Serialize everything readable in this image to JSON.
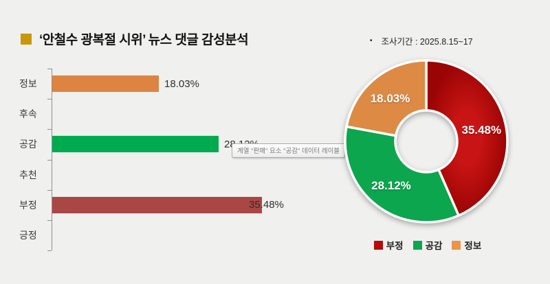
{
  "title": {
    "text": "‘안철수 광복절 시위’ 뉴스 댓글 감성분석"
  },
  "survey_period": {
    "bullet": "•",
    "text": "조사기간 : 2025.8.15~17"
  },
  "tooltip": {
    "text": "계열 \"판매\" 요소 \"공감\" 데이터 레이블"
  },
  "chart_data": [
    {
      "type": "bar",
      "orientation": "horizontal",
      "categories": [
        "정보",
        "후속",
        "공감",
        "추천",
        "부정",
        "긍정"
      ],
      "keys": [
        "info",
        "followup",
        "empathy",
        "recommend",
        "negative",
        "positive"
      ],
      "values": [
        18.03,
        0,
        28.12,
        0,
        35.48,
        0
      ],
      "value_labels": [
        "18.03%",
        "",
        "28.12%",
        "",
        "35.48%",
        ""
      ],
      "bar_colors": [
        "#DD8442",
        "",
        "#00AB50",
        "",
        "#A94745",
        ""
      ],
      "xlim": [
        0,
        40
      ],
      "grid": false,
      "axis_color": "#8F8F8F"
    },
    {
      "type": "pie",
      "donut": true,
      "labels": [
        "부정",
        "공감",
        "정보"
      ],
      "keys": [
        "negative",
        "empathy",
        "info"
      ],
      "values": [
        35.48,
        28.12,
        18.03
      ],
      "value_labels": [
        "35.48%",
        "28.12%",
        "18.03%"
      ],
      "colors": [
        "#B40808",
        "#0CA64E",
        "#DD8A45"
      ],
      "red_gradient": [
        "#C81414",
        "#9A0404"
      ],
      "start_angle_deg": 0,
      "direction": "clockwise",
      "legend_position": "bottom"
    }
  ],
  "legend": {
    "items": [
      {
        "key": "negative",
        "label": "부정",
        "color": "#B60B0B"
      },
      {
        "key": "empathy",
        "label": "공감",
        "color": "#0CA64F"
      },
      {
        "key": "info",
        "label": "정보",
        "color": "#EC9447"
      }
    ]
  },
  "colors": {
    "background": "#F0F0EF",
    "title_bullet": "#C9960C"
  }
}
